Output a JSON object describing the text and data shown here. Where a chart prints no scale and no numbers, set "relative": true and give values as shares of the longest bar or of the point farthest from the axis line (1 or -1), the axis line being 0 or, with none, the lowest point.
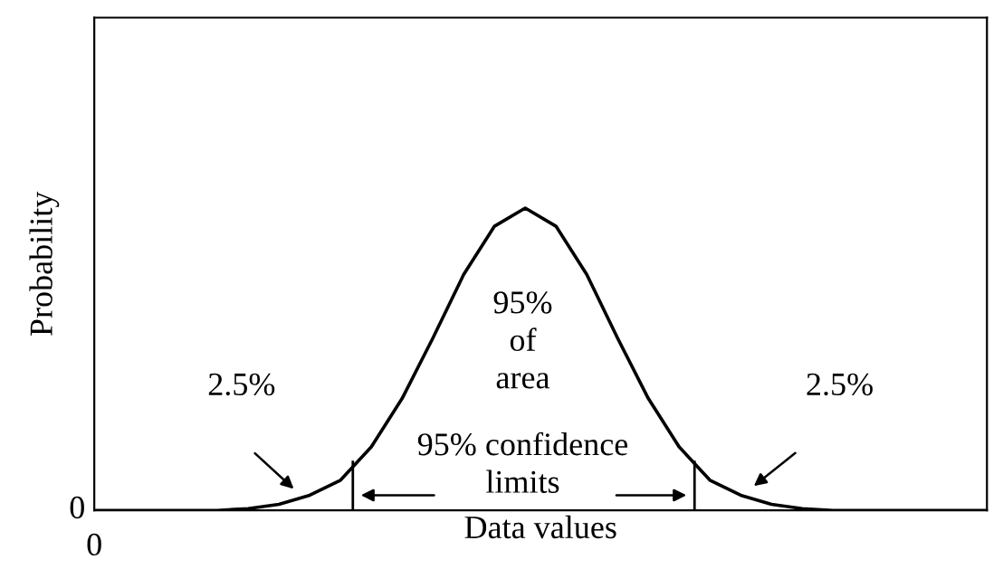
{
  "chart_data": {
    "type": "line",
    "relative": true,
    "categories": [
      null,
      null,
      null,
      null,
      null,
      null,
      null,
      null,
      null,
      null,
      null,
      null,
      null,
      null,
      null,
      null,
      null,
      null,
      null,
      null,
      null,
      null,
      null,
      null,
      null,
      null,
      null,
      null,
      null,
      null
    ],
    "values": [
      0,
      0,
      0,
      0,
      0,
      0.006,
      0.02,
      0.05,
      0.1,
      0.21,
      0.37,
      0.57,
      0.78,
      0.94,
      1,
      0.94,
      0.78,
      0.57,
      0.37,
      0.21,
      0.1,
      0.05,
      0.02,
      0.006,
      0,
      0,
      0,
      0,
      0,
      0
    ],
    "color": "#000000",
    "xlabel": "Data values",
    "ylabel": "Probability",
    "annotations": [
      "2.5%",
      "2.5%",
      "95%\nof\narea",
      "95% confidence\nlimits",
      "0",
      "0"
    ],
    "grid": false,
    "legend": false,
    "tick_labels": false
  }
}
